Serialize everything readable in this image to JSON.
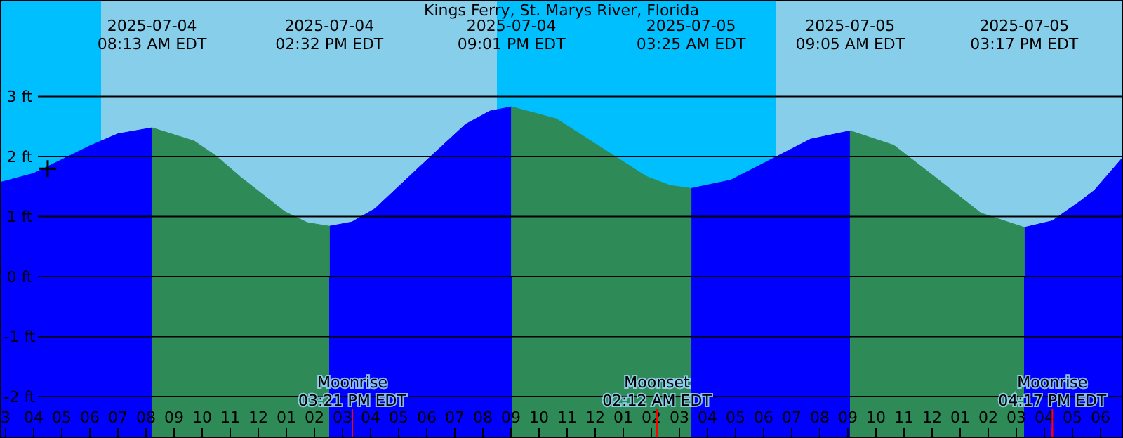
{
  "chart_data": {
    "type": "area",
    "title": "Kings Ferry, St. Marys River, Florida",
    "xlim": [
      "2025-07-04T02:48",
      "2025-07-05T18:48"
    ],
    "xticks": [
      {
        "value": "2025-07-04T03:00",
        "label": "3"
      },
      {
        "value": "2025-07-04T04:00",
        "label": "04"
      },
      {
        "value": "2025-07-04T05:00",
        "label": "05"
      },
      {
        "value": "2025-07-04T06:00",
        "label": "06"
      },
      {
        "value": "2025-07-04T07:00",
        "label": "07"
      },
      {
        "value": "2025-07-04T08:00",
        "label": "08"
      },
      {
        "value": "2025-07-04T09:00",
        "label": "09"
      },
      {
        "value": "2025-07-04T10:00",
        "label": "10"
      },
      {
        "value": "2025-07-04T11:00",
        "label": "11"
      },
      {
        "value": "2025-07-04T12:00",
        "label": "12"
      },
      {
        "value": "2025-07-04T13:00",
        "label": "01"
      },
      {
        "value": "2025-07-04T14:00",
        "label": "02"
      },
      {
        "value": "2025-07-04T15:00",
        "label": "03"
      },
      {
        "value": "2025-07-04T16:00",
        "label": "04"
      },
      {
        "value": "2025-07-04T17:00",
        "label": "05"
      },
      {
        "value": "2025-07-04T18:00",
        "label": "06"
      },
      {
        "value": "2025-07-04T19:00",
        "label": "07"
      },
      {
        "value": "2025-07-04T20:00",
        "label": "08"
      },
      {
        "value": "2025-07-04T21:00",
        "label": "09"
      },
      {
        "value": "2025-07-04T22:00",
        "label": "10"
      },
      {
        "value": "2025-07-04T23:00",
        "label": "11"
      },
      {
        "value": "2025-07-05T00:00",
        "label": "12"
      },
      {
        "value": "2025-07-05T01:00",
        "label": "01"
      },
      {
        "value": "2025-07-05T02:00",
        "label": "02"
      },
      {
        "value": "2025-07-05T03:00",
        "label": "03"
      },
      {
        "value": "2025-07-05T04:00",
        "label": "04"
      },
      {
        "value": "2025-07-05T05:00",
        "label": "05"
      },
      {
        "value": "2025-07-05T06:00",
        "label": "06"
      },
      {
        "value": "2025-07-05T07:00",
        "label": "07"
      },
      {
        "value": "2025-07-05T08:00",
        "label": "08"
      },
      {
        "value": "2025-07-05T09:00",
        "label": "09"
      },
      {
        "value": "2025-07-05T10:00",
        "label": "10"
      },
      {
        "value": "2025-07-05T11:00",
        "label": "11"
      },
      {
        "value": "2025-07-05T12:00",
        "label": "12"
      },
      {
        "value": "2025-07-05T13:00",
        "label": "01"
      },
      {
        "value": "2025-07-05T14:00",
        "label": "02"
      },
      {
        "value": "2025-07-05T15:00",
        "label": "03"
      },
      {
        "value": "2025-07-05T16:00",
        "label": "04"
      },
      {
        "value": "2025-07-05T17:00",
        "label": "05"
      },
      {
        "value": "2025-07-05T18:00",
        "label": "06"
      }
    ],
    "ylim": [
      -2.69,
      4.61
    ],
    "yticks": [
      {
        "value": -2,
        "label": "-2 ft"
      },
      {
        "value": -1,
        "label": "-1 ft"
      },
      {
        "value": 0,
        "label": "0 ft"
      },
      {
        "value": 1,
        "label": "1 ft"
      },
      {
        "value": 2,
        "label": "2 ft"
      },
      {
        "value": 3,
        "label": "3 ft"
      }
    ],
    "grid": "y",
    "ref_lines": [
      {
        "axis": "x",
        "value": "2025-07-04T15:21",
        "label": "Moonrise\n03:21 PM EDT",
        "color": "#ff0000"
      },
      {
        "axis": "x",
        "value": "2025-07-05T02:12",
        "label": "Moonset\n02:12 AM EDT",
        "color": "#ff0000"
      },
      {
        "axis": "x",
        "value": "2025-07-05T16:17",
        "label": "Moonrise\n04:17 PM EDT",
        "color": "#ff0000"
      }
    ],
    "bands": [
      {
        "axis": "x",
        "from": "2025-07-04T02:48",
        "to": "2025-07-04T06:24",
        "color": "#00bfff"
      },
      {
        "axis": "x",
        "from": "2025-07-04T06:24",
        "to": "2025-07-04T20:30",
        "color": "#87ceeb"
      },
      {
        "axis": "x",
        "from": "2025-07-04T20:30",
        "to": "2025-07-05T06:27",
        "color": "#00bfff"
      },
      {
        "axis": "x",
        "from": "2025-07-05T06:27",
        "to": "2025-07-05T18:48",
        "color": "#87ceeb"
      },
      {
        "axis": "y",
        "from": -2.69,
        "to": 0
      }
    ],
    "x": [
      "2025-07-04T02:48",
      "2025-07-04T04:00",
      "2025-07-04T05:00",
      "2025-07-04T06:00",
      "2025-07-04T07:00",
      "2025-07-04T08:13",
      "2025-07-04T09:43",
      "2025-07-04T10:30",
      "2025-07-04T11:22",
      "2025-07-04T12:57",
      "2025-07-04T13:45",
      "2025-07-04T14:32",
      "2025-07-04T15:20",
      "2025-07-04T16:09",
      "2025-07-04T17:46",
      "2025-07-04T19:23",
      "2025-07-04T20:15",
      "2025-07-04T21:01",
      "2025-07-04T22:37",
      "2025-07-05T00:13",
      "2025-07-05T01:49",
      "2025-07-05T02:40",
      "2025-07-05T03:25",
      "2025-07-05T04:50",
      "2025-07-05T06:15",
      "2025-07-05T07:40",
      "2025-07-05T09:05",
      "2025-07-05T10:38",
      "2025-07-05T12:11",
      "2025-07-05T13:44",
      "2025-07-05T15:17",
      "2025-07-05T16:17",
      "2025-07-05T17:17",
      "2025-07-05T17:47",
      "2025-07-05T18:48"
    ],
    "series": [
      {
        "color": "#0000ff",
        "values": [
          1.57,
          1.72,
          1.95,
          2.18,
          2.38,
          2.48,
          null,
          null,
          null,
          null,
          null,
          0.84,
          0.91,
          1.13,
          1.84,
          2.54,
          2.76,
          2.83,
          null,
          null,
          null,
          null,
          1.47,
          1.61,
          1.95,
          2.29,
          2.43,
          null,
          null,
          null,
          0.82,
          0.93,
          1.26,
          1.44,
          1.99
        ]
      },
      {
        "color": "#2e8b57",
        "values": [
          null,
          null,
          null,
          null,
          null,
          2.48,
          2.26,
          2.01,
          1.66,
          1.08,
          0.9,
          0.84,
          null,
          null,
          null,
          null,
          null,
          2.83,
          2.63,
          2.15,
          1.67,
          1.52,
          1.47,
          null,
          null,
          null,
          2.43,
          2.19,
          1.63,
          1.06,
          0.82,
          null,
          null,
          null,
          null
        ]
      },
      {
        "type": "scatter",
        "marker": "cross",
        "color": "#000000",
        "x": [
          "2025-07-04T04:30"
        ],
        "values": [
          1.8
        ]
      }
    ],
    "annotations": [
      "2025-07-04\n08:13 AM EDT",
      "2025-07-04\n02:32 PM EDT",
      "2025-07-04\n09:01 PM EDT",
      "2025-07-05\n03:25 AM EDT",
      "2025-07-05\n09:05 AM EDT",
      "2025-07-05\n03:17 PM EDT"
    ]
  }
}
